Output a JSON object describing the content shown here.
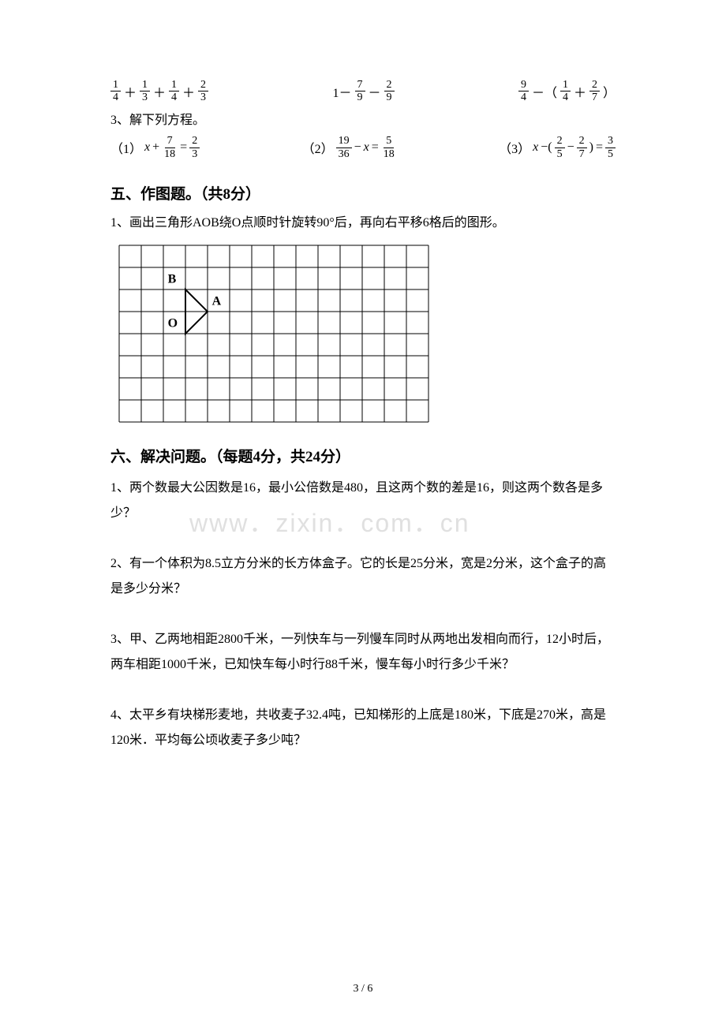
{
  "row1": {
    "expr1": {
      "f1n": "1",
      "f1d": "4",
      "op1": "＋",
      "f2n": "1",
      "f2d": "3",
      "op2": "＋",
      "f3n": "1",
      "f3d": "4",
      "op3": "＋",
      "f4n": "2",
      "f4d": "3"
    },
    "expr2": {
      "lead": "1－",
      "f1n": "7",
      "f1d": "9",
      "op1": "－",
      "f2n": "2",
      "f2d": "9"
    },
    "expr3": {
      "f1n": "9",
      "f1d": "4",
      "op1": "－（",
      "f2n": "1",
      "f2d": "4",
      "op2": "＋",
      "f3n": "2",
      "f3d": "7",
      "close": "）"
    }
  },
  "line_solve": "3、解下列方程。",
  "eqrow": {
    "eq1": {
      "label": "（1）",
      "var": "x",
      "op1": "+",
      "f1n": "7",
      "f1d": "18",
      "eq": "=",
      "f2n": "2",
      "f2d": "3"
    },
    "eq2": {
      "label": "（2）",
      "f1n": "19",
      "f1d": "36",
      "op1": "−",
      "var": "x",
      "eq": "=",
      "f2n": "5",
      "f2d": "18"
    },
    "eq3": {
      "label": "（3）",
      "var": "x",
      "op1": "−(",
      "f1n": "2",
      "f1d": "5",
      "op2": "−",
      "f2n": "2",
      "f2d": "7",
      "close": ")",
      "eq": "=",
      "f3n": "3",
      "f3d": "5"
    }
  },
  "section5": "五、作图题。（共8分）",
  "q5_1": "1、画出三角形AOB绕O点顺时针旋转90°后，再向右平移6格后的图形。",
  "grid": {
    "cols": 14,
    "rows": 8,
    "cell": 28,
    "labels": {
      "B": "B",
      "A": "A",
      "O": "O"
    },
    "B_pos": {
      "col": 2.2,
      "row": 1.7
    },
    "A_pos": {
      "col": 4.2,
      "row": 2.7
    },
    "O_pos": {
      "col": 2.2,
      "row": 3.7
    },
    "triangle": [
      [
        3,
        2
      ],
      [
        4,
        3
      ],
      [
        3,
        4
      ]
    ],
    "stroke": "#000000"
  },
  "watermark": "www．zixin．com．cn",
  "section6": "六、解决问题。（每题4分，共24分）",
  "q6_1": "1、两个数最大公因数是16，最小公倍数是480，且这两个数的差是16，则这两个数各是多少？",
  "q6_2": "2、有一个体积为8.5立方分米的长方体盒子。它的长是25分米，宽是2分米，这个盒子的高是多少分米？",
  "q6_3": "3、甲、乙两地相距2800千米，一列快车与一列慢车同时从两地出发相向而行，12小时后，两车相距1000千米，已知快车每小时行88千米，慢车每小时行多少千米？",
  "q6_4": "4、太平乡有块梯形麦地，共收麦子32.4吨，已知梯形的上底是180米，下底是270米，高是120米．平均每公顷收麦子多少吨？",
  "page_num": "3 / 6"
}
